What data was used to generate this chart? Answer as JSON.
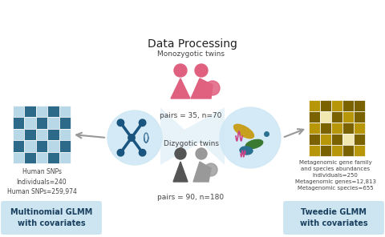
{
  "bg_color": "#ffffff",
  "title": "Data Processing",
  "title_fontsize": 10,
  "mono_label": "Monozygotic twins",
  "mono_pairs": "pairs = 35, n=70",
  "dizo_label": "Dizygotic twins",
  "dizo_pairs": "pairs = 90, n=180",
  "left_box_text": "Multinomial GLMM\nwith covariates",
  "left_box_color": "#cce5f0",
  "right_box_text": "Tweedie GLMM\nwith covariates",
  "right_box_color": "#cce5f0",
  "left_info": "Human SNPs\nIndividuals=240\nHuman SNPs=259,974",
  "right_info": "Metagenomic gene family\nand species abundances\nIndividuals=250\nMetagenomic genes=12,813\nMetagenomic species=655",
  "snp_dark": "#2d6a8a",
  "snp_light": "#b8d8e8",
  "snp_white": "#ffffff",
  "meta_dark": "#7a6200",
  "meta_mid": "#b8960a",
  "meta_light": "#ddc83a",
  "meta_white": "#f0e8b0",
  "funnel_color": "#d0e8f5",
  "arrow_color": "#999999",
  "pink_color": "#e06080",
  "dark_person": "#555555",
  "light_person": "#999999",
  "chrom_color": "#1a5580",
  "circle_edge": "#c0d8e8"
}
